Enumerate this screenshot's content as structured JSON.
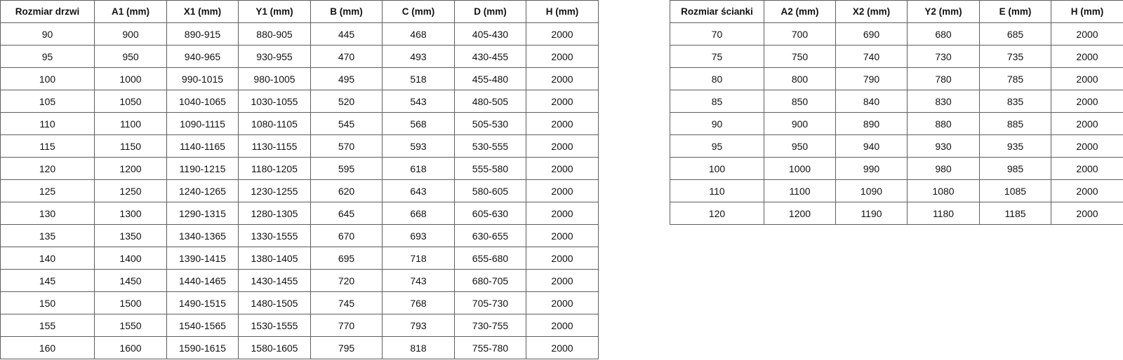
{
  "doors_table": {
    "headers": [
      "Rozmiar drzwi",
      "A1 (mm)",
      "X1 (mm)",
      "Y1 (mm)",
      "B (mm)",
      "C (mm)",
      "D (mm)",
      "H (mm)"
    ],
    "rows": [
      [
        "90",
        "900",
        "890-915",
        "880-905",
        "445",
        "468",
        "405-430",
        "2000"
      ],
      [
        "95",
        "950",
        "940-965",
        "930-955",
        "470",
        "493",
        "430-455",
        "2000"
      ],
      [
        "100",
        "1000",
        "990-1015",
        "980-1005",
        "495",
        "518",
        "455-480",
        "2000"
      ],
      [
        "105",
        "1050",
        "1040-1065",
        "1030-1055",
        "520",
        "543",
        "480-505",
        "2000"
      ],
      [
        "110",
        "1100",
        "1090-1115",
        "1080-1105",
        "545",
        "568",
        "505-530",
        "2000"
      ],
      [
        "115",
        "1150",
        "1140-1165",
        "1130-1155",
        "570",
        "593",
        "530-555",
        "2000"
      ],
      [
        "120",
        "1200",
        "1190-1215",
        "1180-1205",
        "595",
        "618",
        "555-580",
        "2000"
      ],
      [
        "125",
        "1250",
        "1240-1265",
        "1230-1255",
        "620",
        "643",
        "580-605",
        "2000"
      ],
      [
        "130",
        "1300",
        "1290-1315",
        "1280-1305",
        "645",
        "668",
        "605-630",
        "2000"
      ],
      [
        "135",
        "1350",
        "1340-1365",
        "1330-1555",
        "670",
        "693",
        "630-655",
        "2000"
      ],
      [
        "140",
        "1400",
        "1390-1415",
        "1380-1405",
        "695",
        "718",
        "655-680",
        "2000"
      ],
      [
        "145",
        "1450",
        "1440-1465",
        "1430-1455",
        "720",
        "743",
        "680-705",
        "2000"
      ],
      [
        "150",
        "1500",
        "1490-1515",
        "1480-1505",
        "745",
        "768",
        "705-730",
        "2000"
      ],
      [
        "155",
        "1550",
        "1540-1565",
        "1530-1555",
        "770",
        "793",
        "730-755",
        "2000"
      ],
      [
        "160",
        "1600",
        "1590-1615",
        "1580-1605",
        "795",
        "818",
        "755-780",
        "2000"
      ]
    ]
  },
  "walls_table": {
    "headers": [
      "Rozmiar ścianki",
      "A2 (mm)",
      "X2 (mm)",
      "Y2 (mm)",
      "E (mm)",
      "H (mm)"
    ],
    "rows": [
      [
        "70",
        "700",
        "690",
        "680",
        "685",
        "2000"
      ],
      [
        "75",
        "750",
        "740",
        "730",
        "735",
        "2000"
      ],
      [
        "80",
        "800",
        "790",
        "780",
        "785",
        "2000"
      ],
      [
        "85",
        "850",
        "840",
        "830",
        "835",
        "2000"
      ],
      [
        "90",
        "900",
        "890",
        "880",
        "885",
        "2000"
      ],
      [
        "95",
        "950",
        "940",
        "930",
        "935",
        "2000"
      ],
      [
        "100",
        "1000",
        "990",
        "980",
        "985",
        "2000"
      ],
      [
        "110",
        "1100",
        "1090",
        "1080",
        "1085",
        "2000"
      ],
      [
        "120",
        "1200",
        "1190",
        "1180",
        "1185",
        "2000"
      ]
    ]
  }
}
